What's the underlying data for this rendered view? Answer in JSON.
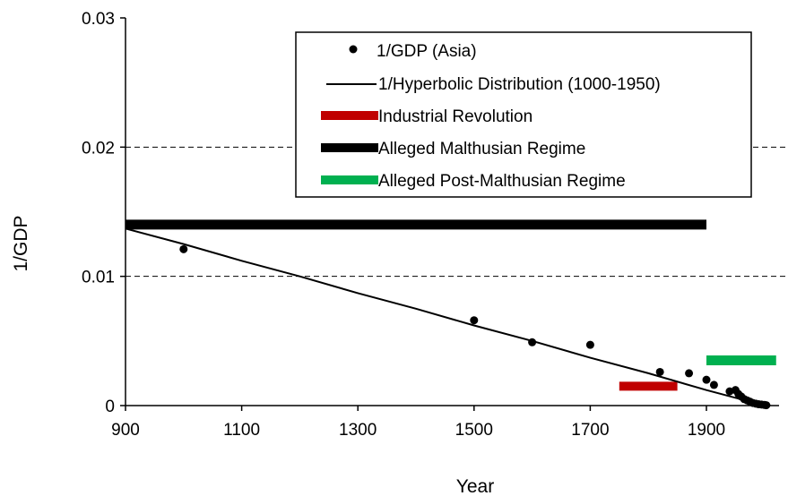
{
  "chart_data": {
    "type": "scatter",
    "title": "",
    "xlabel": "Year",
    "ylabel": "1/GDP",
    "xlim": [
      900,
      2020
    ],
    "ylim": [
      0,
      0.03
    ],
    "xticks": [
      900,
      1100,
      1300,
      1500,
      1700,
      1900
    ],
    "yticks": [
      0,
      0.01,
      0.02,
      0.03
    ],
    "x_tick_labels": [
      "900",
      "1100",
      "1300",
      "1500",
      "1700",
      "1900"
    ],
    "y_tick_labels": [
      "0",
      "0.01",
      "0.02",
      "0.03"
    ],
    "grid": "horizontal dashed",
    "legend_position": "top-right",
    "colors": {
      "points": "#000000",
      "line": "#000000",
      "industrial": "#c00000",
      "malthusian": "#000000",
      "post_malthusian": "#00b050"
    },
    "series": [
      {
        "name": "1/GDP (Asia)",
        "kind": "points",
        "x": [
          1000,
          1500,
          1600,
          1700,
          1820,
          1870,
          1900,
          1913,
          1940,
          1950,
          1955,
          1960,
          1965,
          1970,
          1975,
          1980,
          1985,
          1990,
          1995,
          2000,
          2003
        ],
        "y": [
          0.0121,
          0.0066,
          0.0049,
          0.0047,
          0.0026,
          0.0025,
          0.002,
          0.0016,
          0.0011,
          0.0012,
          0.0009,
          0.0007,
          0.0005,
          0.0004,
          0.0003,
          0.0002,
          0.00015,
          0.0001,
          8e-05,
          5e-05,
          3e-05
        ]
      },
      {
        "name": "1/Hyperbolic Distribution (1000-1950)",
        "kind": "line",
        "x": [
          900,
          1000,
          1100,
          1200,
          1300,
          1400,
          1500,
          1600,
          1700,
          1800,
          1900,
          1950,
          1980,
          2000,
          2010
        ],
        "y": [
          0.0137,
          0.0125,
          0.0112,
          0.01,
          0.0087,
          0.0075,
          0.0062,
          0.005,
          0.0037,
          0.0025,
          0.0012,
          0.0006,
          0.00025,
          8e-05,
          2e-05
        ]
      },
      {
        "name": "Industrial Revolution",
        "kind": "band",
        "x": [
          1750,
          1850
        ],
        "y": 0.0015
      },
      {
        "name": "Alleged Malthusian Regime",
        "kind": "band",
        "x": [
          900,
          1900
        ],
        "y": 0.014
      },
      {
        "name": "Alleged Post-Malthusian Regime",
        "kind": "band",
        "x": [
          1900,
          2020
        ],
        "y": 0.0035
      }
    ]
  }
}
